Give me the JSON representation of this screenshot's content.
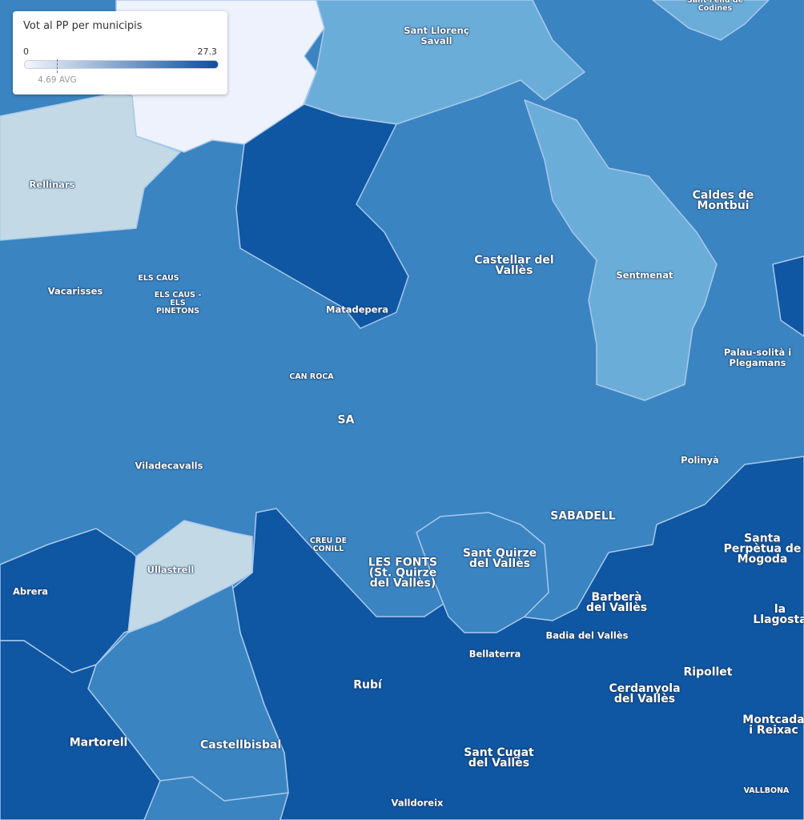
{
  "legend": {
    "title": "Vot al PP per municipis",
    "min": 0,
    "max": 27.3,
    "avg": {
      "value": 4.69,
      "label": "4.69 AVG"
    }
  },
  "places": [
    "Sant Llorenç Savall",
    "Sant Feliu de Codines",
    "Rellinars",
    "Caldes de Montbui",
    "Castellar del Vallès",
    "Sentmenat",
    "Vacarisses",
    "ELS CAUS",
    "ELS CAUS - ELS PINETONS",
    "Matadepera",
    "Palau-solità i Plegamans",
    "CAN ROCA",
    "SA",
    "Viladecavalls",
    "Polinyà",
    "SABADELL",
    "Santa Perpètua de Mogoda",
    "CREU DE CONILL",
    "LES FONTS (St. Quirze del Vallès)",
    "Sant Quirze del Vallès",
    "Ullastrell",
    "Abrera",
    "Barberà del Vallès",
    "la Llagosta",
    "Badia del Vallès",
    "Bellaterra",
    "Ripollet",
    "Rubí",
    "Cerdanyola del Vallès",
    "Montcada i Reixac",
    "Martorell",
    "Castellbisbal",
    "Sant Cugat del Vallès",
    "VALLBONA",
    "Valldoreix"
  ]
}
